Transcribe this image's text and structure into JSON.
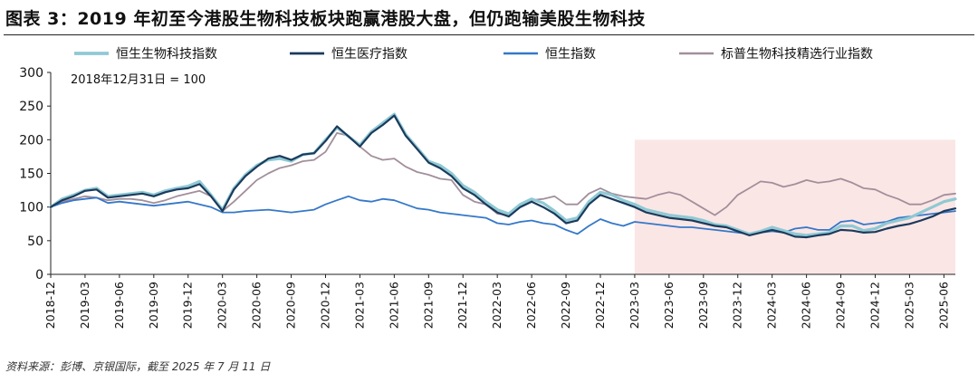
{
  "page": {
    "title": "图表 3：2019 年初至今港股生物科技板块跑赢港股大盘，但仍跑输美股生物科技",
    "source": "资料来源：彭博、京银国际，截至 2025 年 7 月 11 日"
  },
  "chart_data": {
    "type": "line",
    "annotation": "2018年12月31日 = 100",
    "ylim": [
      0,
      300
    ],
    "yticks": [
      0,
      50,
      100,
      150,
      200,
      250,
      300
    ],
    "xlim": [
      "2018-12",
      "2025-07"
    ],
    "x_tick_labels": [
      "2018-12",
      "2019-03",
      "2019-06",
      "2019-09",
      "2019-12",
      "2020-03",
      "2020-06",
      "2020-09",
      "2020-12",
      "2021-03",
      "2021-06",
      "2021-09",
      "2021-12",
      "2022-03",
      "2022-06",
      "2022-09",
      "2022-12",
      "2023-03",
      "2023-06",
      "2023-09",
      "2023-12",
      "2024-03",
      "2024-06",
      "2024-09",
      "2024-12",
      "2025-03",
      "2025-06"
    ],
    "highlight_region": {
      "x_start": "2023-03",
      "x_end": "2025-07",
      "y_top": 200,
      "color": "#fbe6e6"
    },
    "legend_position": "top",
    "grid": false,
    "x": [
      "2018-12",
      "2019-01",
      "2019-02",
      "2019-03",
      "2019-04",
      "2019-05",
      "2019-06",
      "2019-07",
      "2019-08",
      "2019-09",
      "2019-10",
      "2019-11",
      "2019-12",
      "2020-01",
      "2020-02",
      "2020-03",
      "2020-04",
      "2020-05",
      "2020-06",
      "2020-07",
      "2020-08",
      "2020-09",
      "2020-10",
      "2020-11",
      "2020-12",
      "2021-01",
      "2021-02",
      "2021-03",
      "2021-04",
      "2021-05",
      "2021-06",
      "2021-07",
      "2021-08",
      "2021-09",
      "2021-10",
      "2021-11",
      "2021-12",
      "2022-01",
      "2022-02",
      "2022-03",
      "2022-04",
      "2022-05",
      "2022-06",
      "2022-07",
      "2022-08",
      "2022-09",
      "2022-10",
      "2022-11",
      "2022-12",
      "2023-01",
      "2023-02",
      "2023-03",
      "2023-04",
      "2023-05",
      "2023-06",
      "2023-07",
      "2023-08",
      "2023-09",
      "2023-10",
      "2023-11",
      "2023-12",
      "2024-01",
      "2024-02",
      "2024-03",
      "2024-04",
      "2024-05",
      "2024-06",
      "2024-07",
      "2024-08",
      "2024-09",
      "2024-10",
      "2024-11",
      "2024-12",
      "2025-01",
      "2025-02",
      "2025-03",
      "2025-04",
      "2025-05",
      "2025-06",
      "2025-07"
    ],
    "series": [
      {
        "name": "恒生生物科技指数",
        "color": "#8fc9d4",
        "width": 3.2,
        "values": [
          100,
          112,
          118,
          125,
          128,
          116,
          118,
          120,
          122,
          118,
          124,
          128,
          131,
          138,
          118,
          96,
          128,
          148,
          162,
          170,
          172,
          168,
          178,
          180,
          200,
          218,
          205,
          192,
          212,
          225,
          238,
          208,
          188,
          168,
          162,
          150,
          132,
          122,
          108,
          96,
          90,
          104,
          112,
          106,
          94,
          80,
          84,
          108,
          122,
          118,
          110,
          104,
          96,
          92,
          88,
          86,
          84,
          80,
          74,
          72,
          66,
          60,
          64,
          70,
          65,
          60,
          58,
          60,
          62,
          72,
          72,
          65,
          68,
          76,
          80,
          84,
          92,
          100,
          108,
          112
        ]
      },
      {
        "name": "恒生医疗指数",
        "color": "#1b3a5c",
        "width": 2.2,
        "values": [
          100,
          110,
          116,
          124,
          126,
          114,
          116,
          118,
          120,
          116,
          122,
          126,
          128,
          134,
          116,
          94,
          126,
          146,
          160,
          172,
          176,
          170,
          178,
          180,
          198,
          220,
          205,
          190,
          210,
          222,
          236,
          206,
          186,
          166,
          158,
          146,
          128,
          118,
          104,
          92,
          86,
          100,
          108,
          100,
          90,
          76,
          80,
          104,
          118,
          112,
          106,
          100,
          92,
          88,
          84,
          82,
          80,
          76,
          72,
          70,
          64,
          58,
          62,
          66,
          62,
          56,
          55,
          58,
          60,
          66,
          65,
          62,
          63,
          68,
          72,
          75,
          80,
          86,
          94,
          98
        ]
      },
      {
        "name": "恒生指数",
        "color": "#3578c9",
        "width": 1.8,
        "values": [
          100,
          106,
          110,
          112,
          114,
          106,
          108,
          106,
          104,
          102,
          104,
          106,
          108,
          104,
          100,
          92,
          92,
          94,
          95,
          96,
          94,
          92,
          94,
          96,
          104,
          110,
          116,
          110,
          108,
          112,
          110,
          104,
          98,
          96,
          92,
          90,
          88,
          86,
          84,
          76,
          74,
          78,
          80,
          76,
          74,
          66,
          60,
          72,
          82,
          76,
          72,
          78,
          76,
          74,
          72,
          70,
          70,
          68,
          66,
          64,
          62,
          60,
          62,
          64,
          62,
          68,
          70,
          66,
          66,
          78,
          80,
          74,
          76,
          78,
          84,
          86,
          88,
          90,
          92,
          94
        ]
      },
      {
        "name": "标普生物科技精选行业指数",
        "color": "#a28f9b",
        "width": 1.8,
        "values": [
          100,
          108,
          112,
          116,
          114,
          110,
          112,
          112,
          110,
          106,
          110,
          116,
          120,
          124,
          116,
          94,
          108,
          124,
          140,
          150,
          158,
          162,
          168,
          170,
          182,
          210,
          206,
          190,
          176,
          170,
          172,
          160,
          152,
          148,
          142,
          140,
          118,
          108,
          104,
          90,
          88,
          100,
          110,
          112,
          116,
          104,
          104,
          120,
          128,
          120,
          116,
          114,
          112,
          118,
          122,
          118,
          108,
          98,
          88,
          100,
          118,
          128,
          138,
          136,
          130,
          134,
          140,
          136,
          138,
          142,
          136,
          128,
          126,
          118,
          112,
          104,
          104,
          110,
          118,
          120
        ]
      }
    ]
  }
}
